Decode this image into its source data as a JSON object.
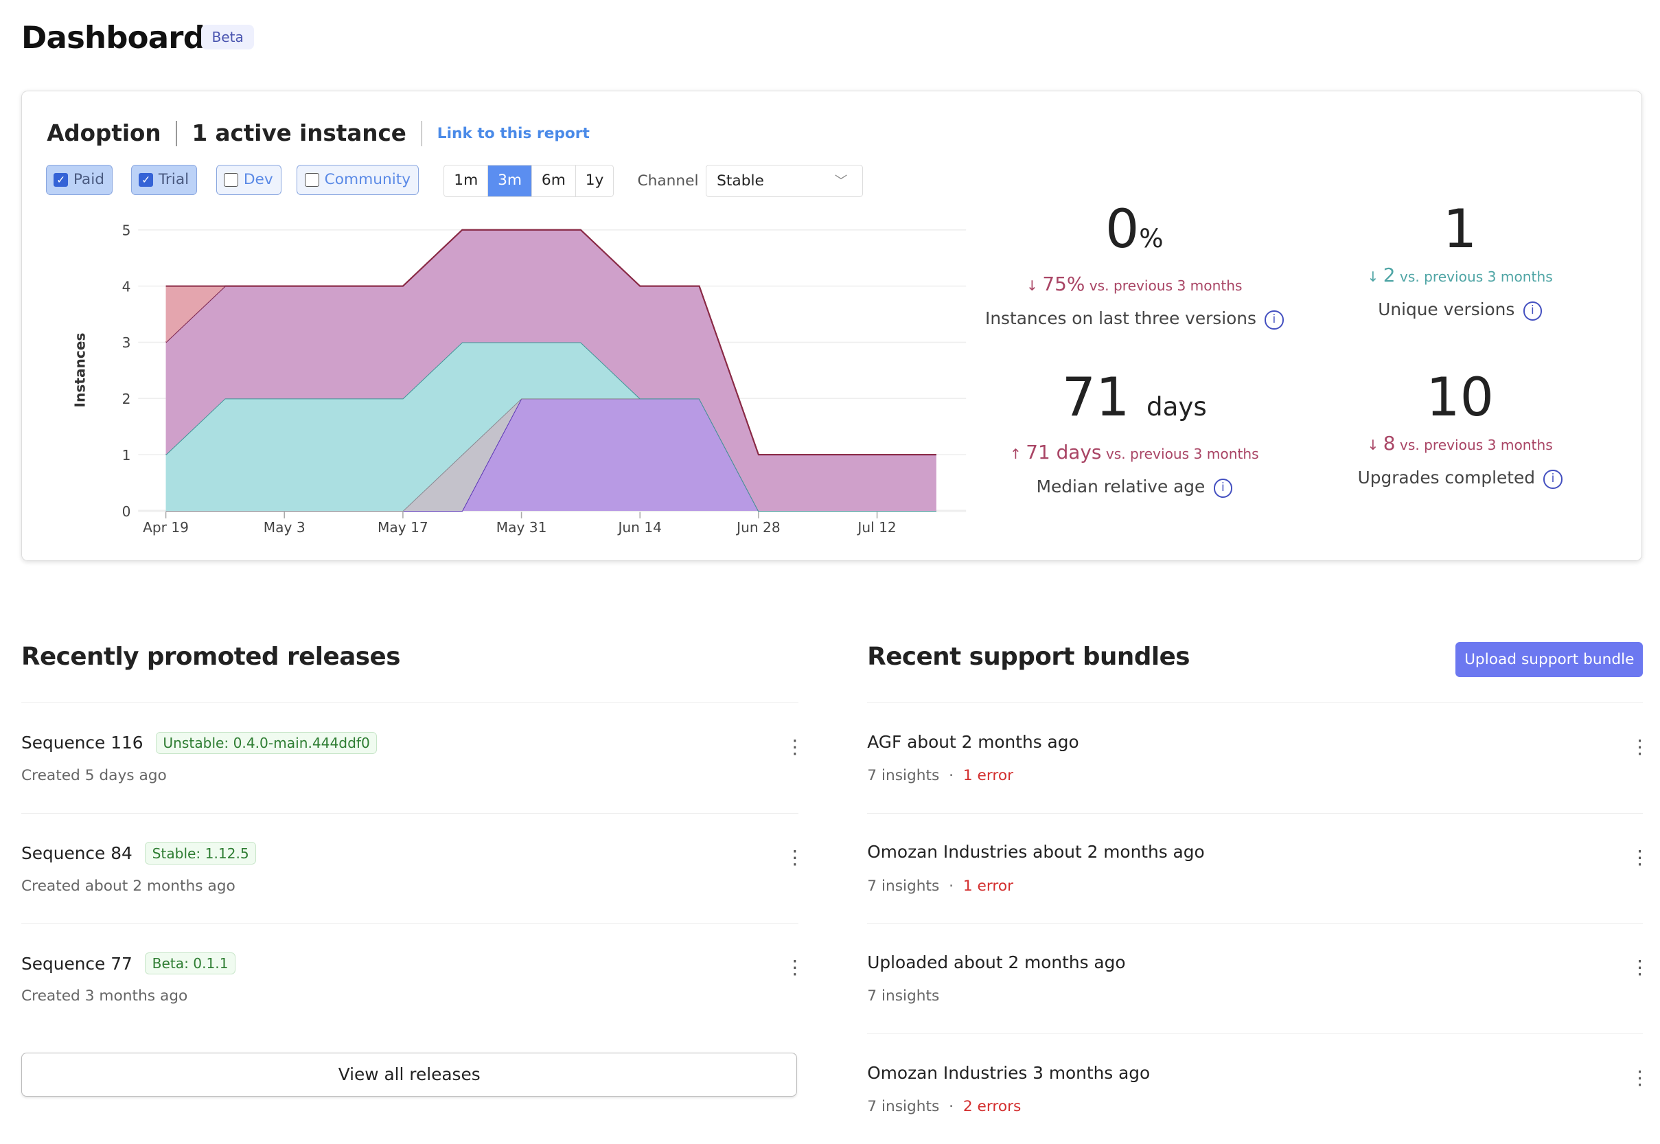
{
  "header": {
    "title": "Dashboard",
    "badge": "Beta"
  },
  "adoption": {
    "title": "Adoption",
    "active": "1 active instance",
    "link": "Link to this report",
    "filters": [
      {
        "label": "Paid",
        "checked": true
      },
      {
        "label": "Trial",
        "checked": true
      },
      {
        "label": "Dev",
        "checked": false
      },
      {
        "label": "Community",
        "checked": false
      }
    ],
    "ranges": [
      "1m",
      "3m",
      "6m",
      "1y"
    ],
    "selected_range": "3m",
    "channel_label": "Channel",
    "channel_value": "Stable"
  },
  "stats": [
    {
      "value": "0",
      "unit": "%",
      "delta": "75%",
      "delta_dir": "down",
      "delta_text": "vs. previous 3 months",
      "label": "Instances on last three versions"
    },
    {
      "value": "1",
      "unit": "",
      "delta": "2",
      "delta_dir": "down",
      "delta_text": "vs. previous 3 months",
      "label": "Unique versions"
    },
    {
      "value": "71",
      "unit": "days",
      "delta": "71 days",
      "delta_dir": "up",
      "delta_text": "vs. previous 3 months",
      "label": "Median relative age"
    },
    {
      "value": "10",
      "unit": "",
      "delta": "8",
      "delta_dir": "down",
      "delta_text": "vs. previous 3 months",
      "label": "Upgrades completed"
    }
  ],
  "chart_data": {
    "type": "area",
    "stacked": true,
    "ylabel": "Instances",
    "ylim": [
      0,
      5
    ],
    "yticks": [
      "0",
      "1",
      "2",
      "3",
      "4",
      "5"
    ],
    "x": [
      "Apr 19",
      "Apr 26",
      "May 3",
      "May 10",
      "May 17",
      "May 24",
      "May 31",
      "Jun 7",
      "Jun 14",
      "Jun 21",
      "Jun 28",
      "Jul 5",
      "Jul 12",
      "Jul 19"
    ],
    "xticks": [
      "Apr 19",
      "May 3",
      "May 17",
      "May 31",
      "Jun 14",
      "Jun 28",
      "Jul 12"
    ],
    "grid": true,
    "series": [
      {
        "color": "#b89ae4",
        "line": "#5a35b5",
        "values": [
          0,
          0,
          0,
          0,
          0,
          0,
          2,
          2,
          2,
          2,
          0,
          0,
          0,
          0
        ]
      },
      {
        "color": "#c4c2cb",
        "line": "#8a8890",
        "values": [
          0,
          0,
          0,
          0,
          0,
          1,
          0,
          0,
          0,
          0,
          0,
          0,
          0,
          0
        ]
      },
      {
        "color": "#abdfe1",
        "line": "#3f9597",
        "values": [
          1,
          2,
          2,
          2,
          2,
          2,
          1,
          1,
          0,
          0,
          0,
          0,
          0,
          0
        ]
      },
      {
        "color": "#cfa0ca",
        "line": "#7d2750",
        "values": [
          2,
          2,
          2,
          2,
          2,
          2,
          2,
          2,
          2,
          2,
          1,
          1,
          1,
          1
        ]
      },
      {
        "color": "#e4a5ae",
        "line": "#8a2a45",
        "values": [
          1,
          0,
          0,
          0,
          0,
          0,
          0,
          0,
          0,
          0,
          0,
          0,
          0,
          0
        ]
      }
    ]
  },
  "releases": {
    "title": "Recently promoted releases",
    "items": [
      {
        "name": "Sequence 116",
        "tag": "Unstable: 0.4.0-main.444ddf0",
        "created": "Created 5 days ago"
      },
      {
        "name": "Sequence 84",
        "tag": "Stable: 1.12.5",
        "created": "Created about 2 months ago"
      },
      {
        "name": "Sequence 77",
        "tag": "Beta: 0.1.1",
        "created": "Created 3 months ago"
      }
    ],
    "view_all": "View all releases"
  },
  "bundles": {
    "title": "Recent support bundles",
    "upload": "Upload support bundle",
    "items": [
      {
        "name": "AGF about 2 months ago",
        "insights": "7 insights",
        "errors": "1 error"
      },
      {
        "name": "Omozan Industries about 2 months ago",
        "insights": "7 insights",
        "errors": "1 error"
      },
      {
        "name": "Uploaded about 2 months ago",
        "insights": "7 insights",
        "errors": ""
      },
      {
        "name": "Omozan Industries 3 months ago",
        "insights": "7 insights",
        "errors": "2 errors"
      }
    ]
  }
}
